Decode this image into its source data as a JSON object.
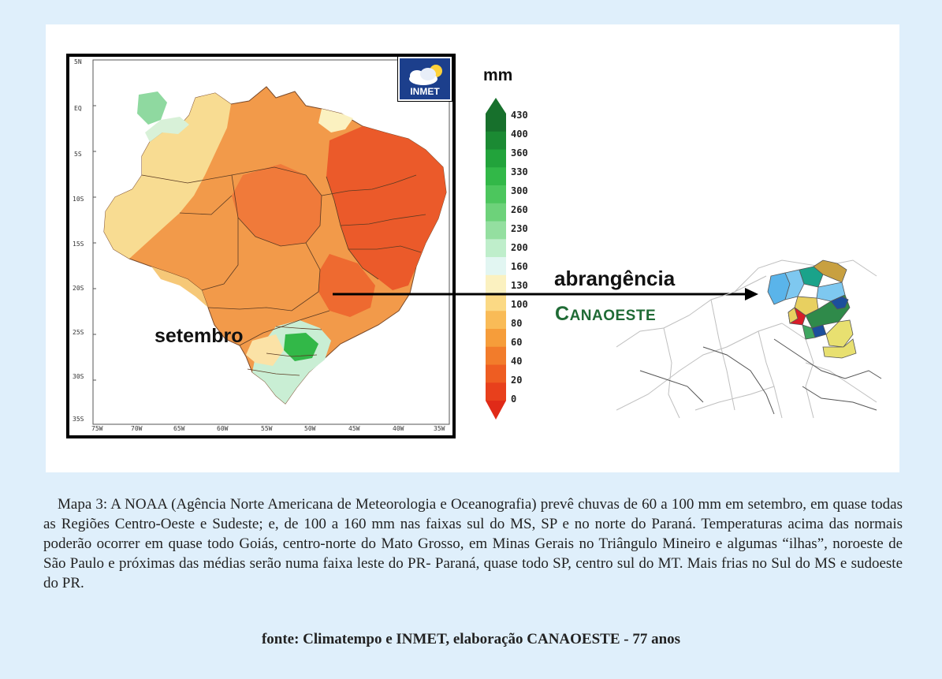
{
  "map": {
    "lat_labels": [
      "5N",
      "EQ",
      "5S",
      "10S",
      "15S",
      "20S",
      "25S",
      "30S",
      "35S"
    ],
    "lon_labels": [
      "75W",
      "70W",
      "65W",
      "60W",
      "55W",
      "50W",
      "45W",
      "40W",
      "35W"
    ],
    "logo_text": "INMET",
    "month": "setembro",
    "region_label": "abrangência",
    "company_label": "CANAOESTE",
    "company_label_first": "C",
    "company_label_rest": "ANAOESTE"
  },
  "legend": {
    "unit": "mm",
    "ticks": [
      "430",
      "400",
      "360",
      "330",
      "300",
      "260",
      "230",
      "200",
      "160",
      "130",
      "100",
      "80",
      "60",
      "40",
      "20",
      "0"
    ],
    "colors": [
      "#17702c",
      "#1b8a33",
      "#22a33b",
      "#32b848",
      "#4cc65d",
      "#6dd27a",
      "#94dfa0",
      "#bfeecb",
      "#e2f6f2",
      "#fbf1c0",
      "#fbd984",
      "#f9bb57",
      "#f69d3a",
      "#f27c2b",
      "#ee5d22",
      "#e8401c"
    ]
  },
  "caption": "Mapa 3: A NOAA (Agência Norte Americana de Meteorologia e Oceanografia) prevê chuvas de 60 a 100 mm em setembro, em quase todas as Regiões Centro-Oeste e Sudeste; e, de 100 a 160 mm nas faixas sul do MS, SP e no norte do Paraná. Temperaturas acima das normais poderão ocorrer em quase todo Goiás, centro-norte do Mato Grosso, em Minas Gerais no Triângulo Mineiro e algumas “ilhas”, noroeste de São Paulo e próximas das médias serão numa faixa leste do PR- Paraná, quase todo SP, centro sul do MT. Mais frias no Sul do MS e sudoeste do PR.",
  "source": "fonte: Climatempo e INMET, elaboração CANAOESTE - 77 anos"
}
